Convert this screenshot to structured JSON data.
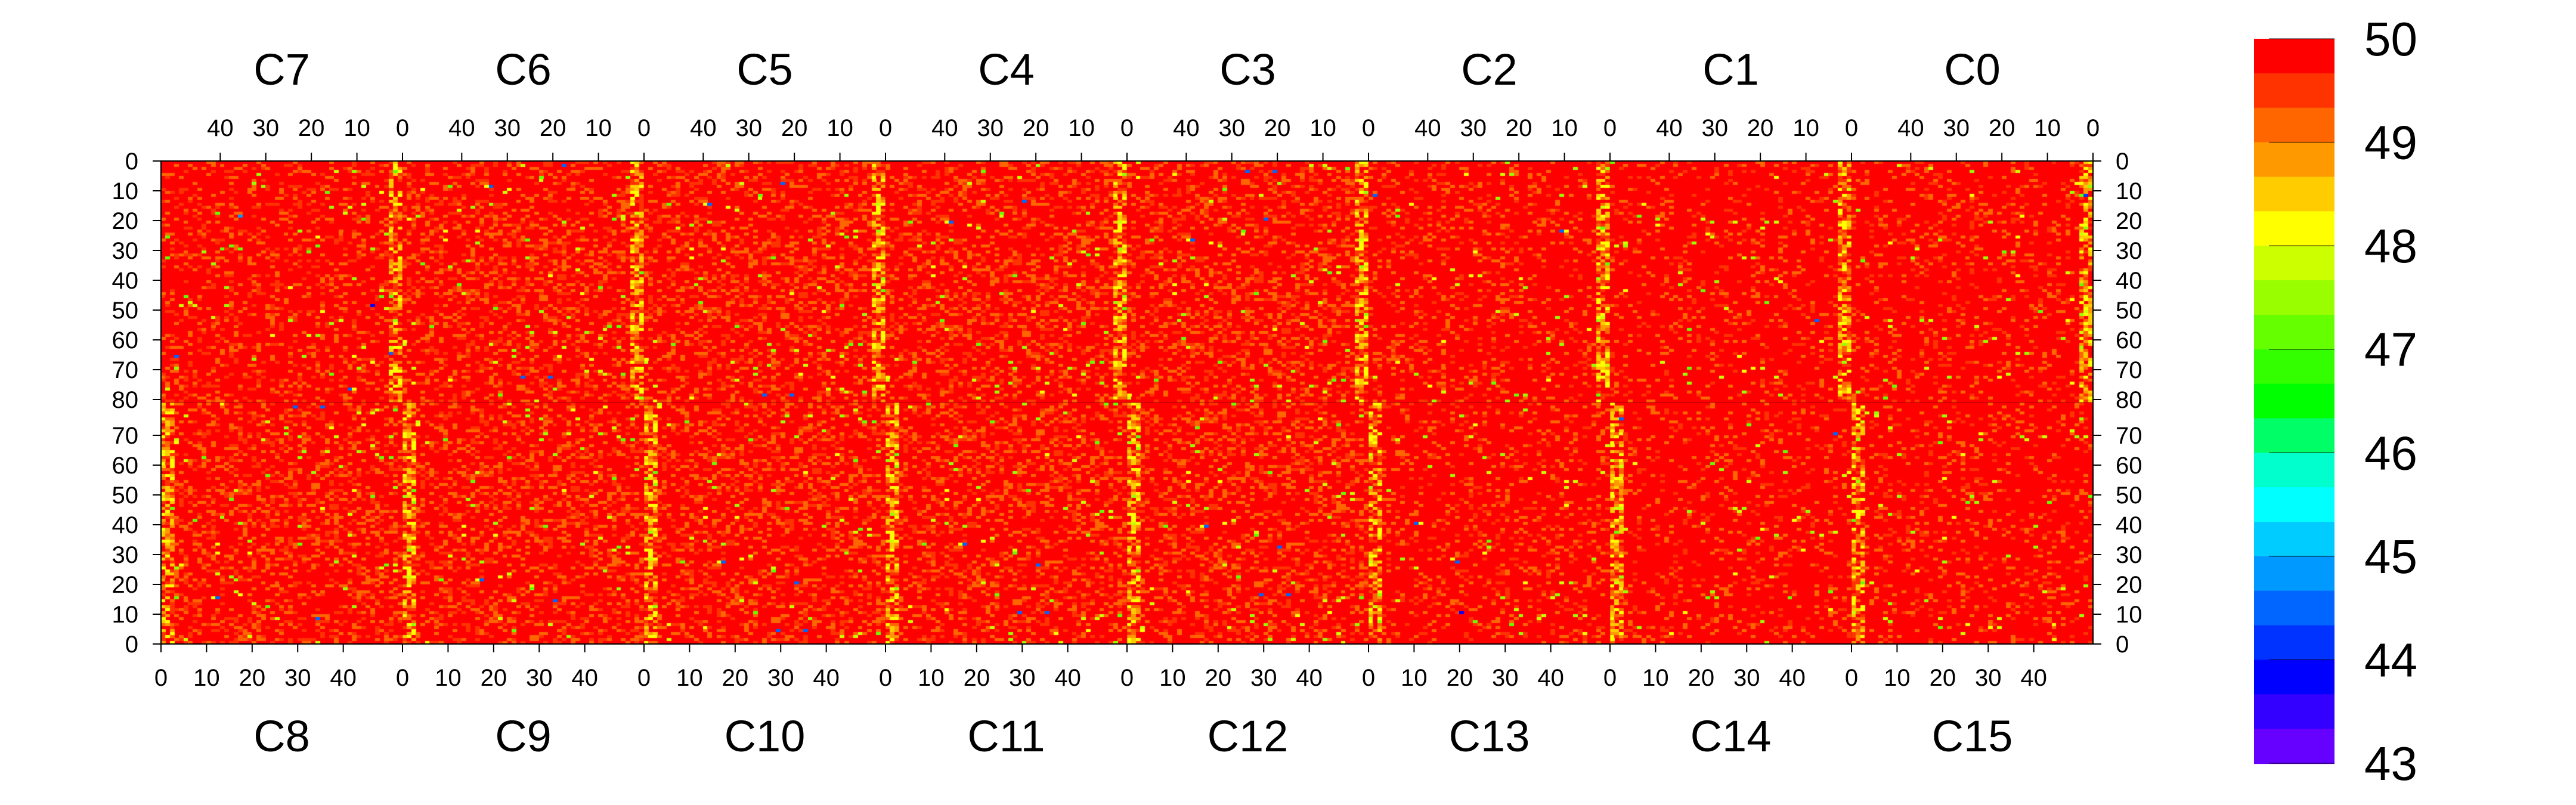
{
  "chart_data": {
    "type": "heatmap",
    "title": "",
    "xlabel": "",
    "ylabel": "",
    "top_chip_labels": [
      "C7",
      "C6",
      "C5",
      "C4",
      "C3",
      "C2",
      "C1",
      "C0"
    ],
    "bottom_chip_labels": [
      "C8",
      "C9",
      "C10",
      "C11",
      "C12",
      "C13",
      "C14",
      "C15"
    ],
    "columns_per_chip": 53,
    "rows_per_half": 81,
    "top_x_axis": {
      "orientation": "reversed",
      "ticks": [
        40,
        30,
        20,
        10,
        0
      ]
    },
    "bottom_x_axis": {
      "orientation": "normal",
      "ticks": [
        0,
        10,
        20,
        30,
        40
      ]
    },
    "y_axis": {
      "top_half_ticks": [
        0,
        10,
        20,
        30,
        40,
        50,
        60,
        70,
        80
      ],
      "bottom_half_ticks": [
        80,
        70,
        60,
        50,
        40,
        30,
        20,
        10,
        0
      ],
      "both_sides": true
    },
    "z_range": [
      43,
      50
    ],
    "colorbar": {
      "ticks": [
        50,
        49,
        48,
        47,
        46,
        45,
        44,
        43
      ],
      "colors": [
        "#ff0000",
        "#ff3300",
        "#ff6600",
        "#ff9900",
        "#ffcc00",
        "#ffff00",
        "#ccff00",
        "#99ff00",
        "#66ff00",
        "#33ff00",
        "#00ff00",
        "#00ff66",
        "#00ffcc",
        "#00ffff",
        "#00ccff",
        "#0099ff",
        "#0066ff",
        "#0033ff",
        "#0000ff",
        "#3300ff",
        "#6600ff"
      ]
    },
    "chip_dominant_value": [
      49.8,
      49.7,
      49.7,
      49.7,
      49.7,
      49.85,
      49.9,
      49.88,
      49.7,
      49.7,
      49.7,
      49.7,
      49.7,
      49.85,
      49.9,
      49.88
    ],
    "column_dip_channels": [
      0
    ]
  }
}
